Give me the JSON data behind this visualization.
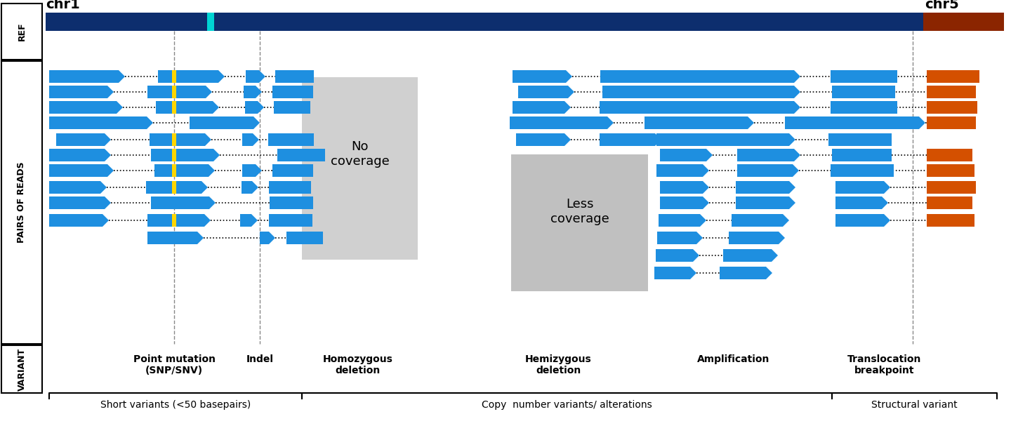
{
  "bg_color": "#ffffff",
  "ref_bar_color": "#0d2e6e",
  "ref_bar_cyan": "#00d4d4",
  "ref_bar_brown": "#8b2500",
  "blue_read": "#1e8fe0",
  "orange_read": "#d45000",
  "yellow_snp": "#ffd600",
  "gray_nc": "#d0d0d0",
  "gray_lc": "#c0c0c0",
  "left_label_ref": "REF",
  "left_label_reads": "PAIRS OF READS",
  "left_label_variant": "VARIANT",
  "variant_labels": [
    "Point mutation\n(SNP/SNV)",
    "Indel",
    "Homozygous\ndeletion",
    "Hemizygous\ndeletion",
    "Amplification",
    "Translocation\nbreakpoint"
  ],
  "group_labels": [
    "Short variants (<50 basepairs)",
    "Copy  number variants/ alterations",
    "Structural variant"
  ],
  "chr1_label": "chr1",
  "chr5_label": "chr5"
}
